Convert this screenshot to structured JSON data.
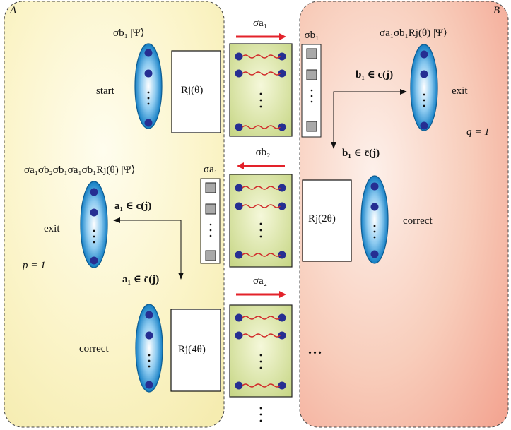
{
  "panels": {
    "left_label": "A",
    "right_label": "B",
    "p_label": "p = 1",
    "q_label": "q = 1"
  },
  "labels": {
    "start": "start",
    "exit_b": "exit",
    "exit_a": "exit",
    "correct_b": "correct",
    "correct_a": "correct"
  },
  "formulas": {
    "state_top_left": "σb₁ |Ψ⟩",
    "state_top_right": "σa₁σb₁Rj(θ) |Ψ⟩",
    "state_left": "σa₁σb₂σb₁σa₁σb₁Rj(θ) |Ψ⟩",
    "rotation_1": "Rj(θ)",
    "rotation_2": "Rj(2θ)",
    "rotation_4": "Rj(4θ)",
    "cond_b_in_c": "b₁ ∈ c(j)",
    "cond_b_in_cbar": "b₁ ∈ c̄(j)",
    "cond_a_in_c": "a₁ ∈ c(j)",
    "cond_a_in_cbar": "a₁ ∈ c̄(j)",
    "arrow_sigma_a1": "σa₁",
    "arrow_sigma_b2": "σb₂",
    "arrow_sigma_a2": "σa₂",
    "register_b1": "σb₁",
    "register_a1": "σa₁",
    "ellipsis_right": "..."
  },
  "colors": {
    "panel_a": "#fbf6cf",
    "panel_b": "#f7c6b5",
    "arrow_red": "#e3222a",
    "ellipse_blue": "#1e86c8",
    "qubit_dot": "#262e92",
    "register_fill": "#cfdc92",
    "wavy_red": "#d12a2a"
  },
  "icons": {
    "qubit": "blue-dot",
    "ellipse": "ellipse-register",
    "register": "gray-square-stack",
    "wave": "wavy-link"
  }
}
